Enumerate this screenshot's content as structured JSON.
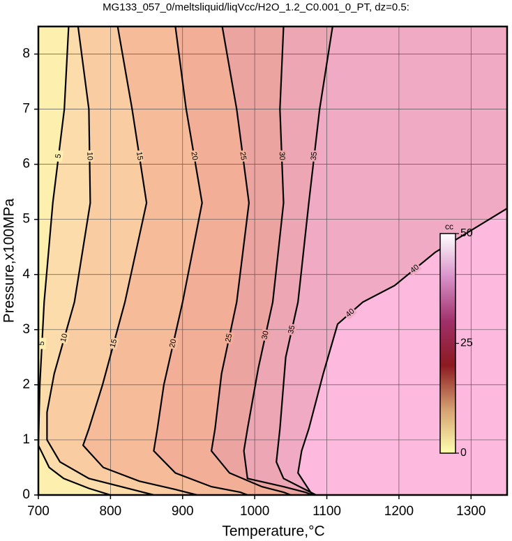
{
  "chart_data": {
    "type": "contour",
    "title": "MG133_057_0/meltsliquid/liqVcc/H2O_1.2_C0.001_0_PT, dz=0.5:",
    "x_label": "Temperature,°C",
    "y_label": "Pressure,x100MPa",
    "xlim": [
      700,
      1350
    ],
    "ylim": [
      0,
      8.5
    ],
    "xticks": [
      700,
      800,
      900,
      1000,
      1100,
      1200,
      1300
    ],
    "yticks": [
      0,
      1,
      2,
      3,
      4,
      5,
      6,
      7,
      8
    ],
    "grid": true,
    "above_color": "#fdb9de",
    "contours": [
      {
        "level": 40,
        "color": "#f1aac4",
        "x": [
          1350,
          1250,
          1194,
          1150,
          1115,
          1095,
          1075,
          1065,
          1060,
          1075,
          1080
        ],
        "y": [
          5.2,
          4.4,
          3.8,
          3.5,
          3.1,
          2.2,
          1.2,
          0.8,
          0.4,
          0.1,
          0
        ]
      },
      {
        "level": 35,
        "color": "#eca6b4",
        "x": [
          1108,
          1090,
          1075,
          1060,
          1043,
          1035,
          1030,
          1040,
          1070,
          1085
        ],
        "y": [
          8.5,
          7,
          5.3,
          3.5,
          2.5,
          1.2,
          0.6,
          0.3,
          0.1,
          0
        ]
      },
      {
        "level": 30,
        "color": "#eca4a0",
        "x": [
          1040,
          1035,
          1040,
          1025,
          1005,
          990,
          985,
          990,
          1040,
          1070,
          1080
        ],
        "y": [
          8.5,
          7,
          5.3,
          3.5,
          2.3,
          1.2,
          0.8,
          0.3,
          0.15,
          0.05,
          0
        ]
      },
      {
        "level": 25,
        "color": "#f2ae96",
        "x": [
          955,
          975,
          992,
          975,
          954,
          945,
          940,
          965,
          1010,
          1040,
          1050
        ],
        "y": [
          8.5,
          7,
          5.3,
          3.5,
          2.2,
          1.2,
          0.8,
          0.4,
          0.15,
          0.05,
          0
        ]
      },
      {
        "level": 20,
        "color": "#f6bc9a",
        "x": [
          890,
          905,
          927,
          900,
          874,
          865,
          860,
          890,
          940,
          980,
          990
        ],
        "y": [
          8.5,
          7,
          5.3,
          3.5,
          2,
          1.2,
          0.8,
          0.4,
          0.15,
          0.05,
          0
        ]
      },
      {
        "level": 15,
        "color": "#f9cca2",
        "x": [
          810,
          830,
          850,
          820,
          789,
          770,
          762,
          790,
          840,
          890,
          920
        ],
        "y": [
          8.5,
          7,
          5.3,
          3.5,
          2,
          1.2,
          0.9,
          0.5,
          0.25,
          0.1,
          0
        ]
      },
      {
        "level": 10,
        "color": "#fbdcaa",
        "x": [
          755,
          770,
          772,
          750,
          722,
          712,
          712,
          730,
          770,
          830,
          860
        ],
        "y": [
          8.5,
          7,
          5.3,
          3.5,
          2.2,
          1.5,
          1,
          0.6,
          0.3,
          0.1,
          0
        ]
      },
      {
        "level": 5,
        "color": "#fdf0ae",
        "x": [
          742,
          736,
          720,
          708,
          702,
          700,
          715,
          735,
          770,
          800
        ],
        "y": [
          8.5,
          7,
          5.3,
          3.5,
          2,
          0.9,
          0.5,
          0.3,
          0.12,
          0
        ]
      }
    ],
    "colorbar": {
      "label": "cc",
      "lim": [
        0,
        50
      ],
      "ticks": [
        0,
        25,
        50
      ],
      "colors": [
        "#ffffb0",
        "#d4a070",
        "#8c1a20",
        "#a0306a",
        "#d890c8",
        "#ffffff"
      ]
    }
  }
}
